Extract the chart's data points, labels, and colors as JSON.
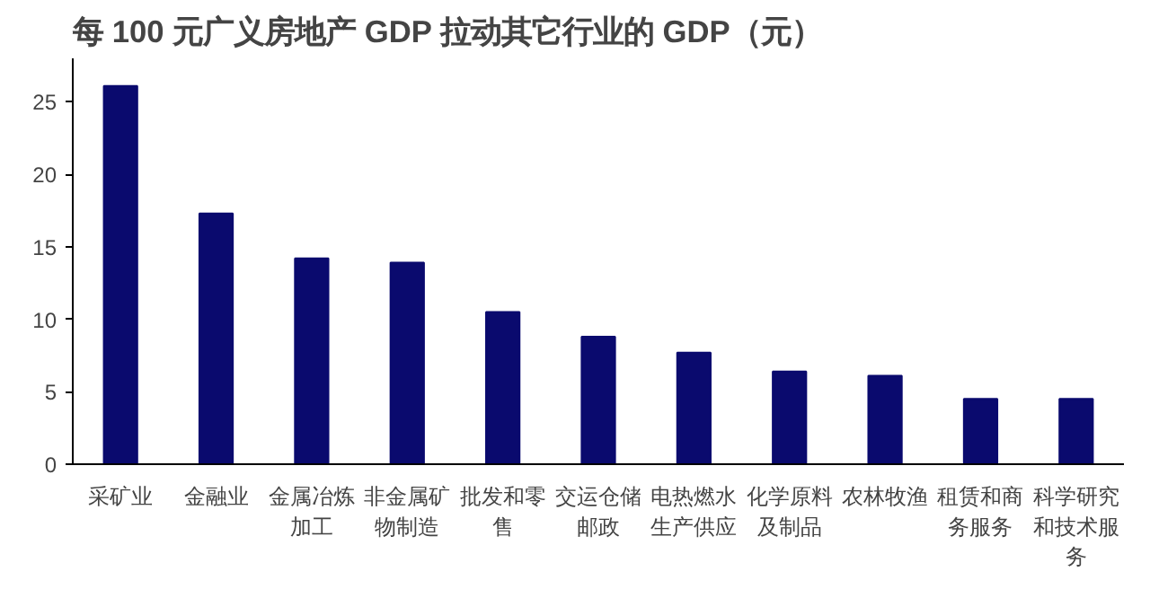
{
  "chart_data": {
    "type": "bar",
    "title": "每 100 元广义房地产 GDP 拉动其它行业的 GDP（元）",
    "categories": [
      "采矿业",
      "金融业",
      "金属冶炼加工",
      "非金属矿物制造",
      "批发和零售",
      "交运仓储邮政",
      "电热燃水生产供应",
      "化学原料及制品",
      "农林牧渔",
      "租赁和商务服务",
      "科学研究和技术服务"
    ],
    "values": [
      26.1,
      17.3,
      14.2,
      13.9,
      10.5,
      8.8,
      7.7,
      6.4,
      6.1,
      4.5,
      4.5
    ],
    "color": "#0a0a6e",
    "ylim": [
      0,
      28
    ],
    "yticks": [
      0,
      5,
      10,
      15,
      20,
      25
    ],
    "grid": false
  }
}
